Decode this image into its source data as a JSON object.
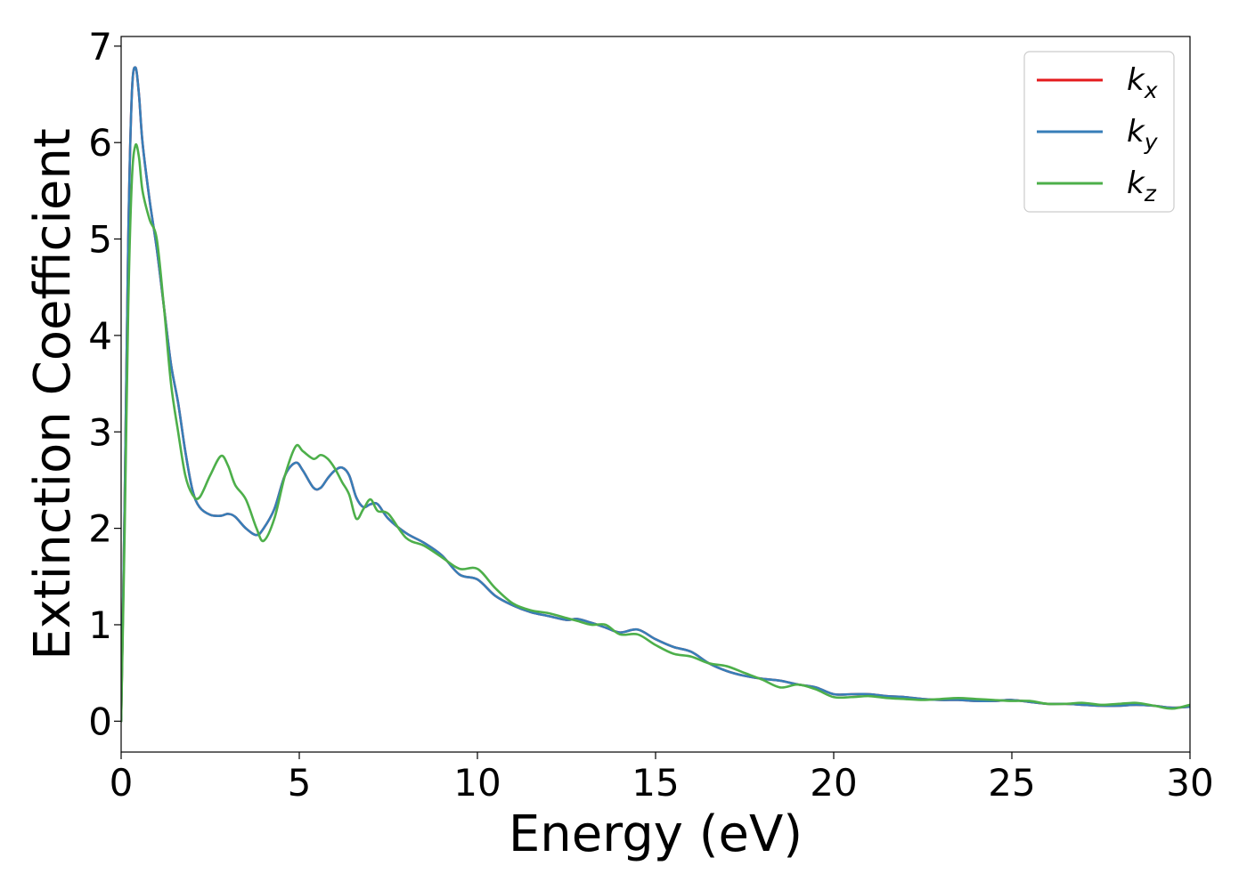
{
  "chart_data": {
    "type": "line",
    "xlabel": "Energy (eV)",
    "ylabel": "Extinction Coefficient",
    "xlim": [
      0,
      30
    ],
    "ylim": [
      -0.32,
      7.1
    ],
    "xticks": [
      0,
      5,
      10,
      15,
      20,
      25,
      30
    ],
    "yticks": [
      0,
      1,
      2,
      3,
      4,
      5,
      6,
      7
    ],
    "grid": false,
    "legend_position": "top-right",
    "series": [
      {
        "name": "k",
        "subscript": "x",
        "color": "#e41a1c",
        "x": [
          0,
          0.1,
          0.2,
          0.3,
          0.4,
          0.5,
          0.6,
          0.8,
          1.0,
          1.2,
          1.4,
          1.6,
          1.8,
          2.0,
          2.2,
          2.5,
          2.8,
          3.0,
          3.2,
          3.5,
          3.8,
          4.0,
          4.3,
          4.6,
          4.9,
          5.1,
          5.4,
          5.6,
          5.8,
          6.0,
          6.2,
          6.4,
          6.6,
          6.8,
          7.0,
          7.2,
          7.5,
          8.0,
          8.5,
          9.0,
          9.5,
          10.0,
          10.5,
          11.0,
          11.5,
          12.0,
          12.5,
          12.8,
          13.2,
          13.6,
          14.0,
          14.5,
          15.0,
          15.5,
          16.0,
          16.5,
          17.0,
          17.5,
          18.0,
          18.5,
          19.0,
          19.5,
          20.0,
          20.5,
          21.0,
          21.5,
          22.0,
          22.5,
          23.0,
          23.5,
          24.0,
          24.5,
          25.0,
          25.5,
          26.0,
          26.5,
          27.0,
          27.5,
          28.0,
          28.5,
          29.0,
          29.5,
          30.0
        ],
        "y": [
          0.0,
          2.3,
          5.0,
          6.5,
          6.78,
          6.5,
          6.0,
          5.4,
          4.9,
          4.3,
          3.7,
          3.3,
          2.8,
          2.4,
          2.22,
          2.14,
          2.13,
          2.15,
          2.12,
          2.0,
          1.93,
          2.0,
          2.2,
          2.55,
          2.68,
          2.6,
          2.42,
          2.42,
          2.52,
          2.6,
          2.63,
          2.55,
          2.32,
          2.22,
          2.25,
          2.25,
          2.1,
          1.95,
          1.85,
          1.72,
          1.52,
          1.47,
          1.3,
          1.2,
          1.13,
          1.09,
          1.05,
          1.06,
          1.02,
          0.97,
          0.92,
          0.95,
          0.85,
          0.77,
          0.72,
          0.6,
          0.52,
          0.47,
          0.44,
          0.42,
          0.38,
          0.35,
          0.28,
          0.28,
          0.28,
          0.26,
          0.25,
          0.23,
          0.22,
          0.22,
          0.21,
          0.21,
          0.22,
          0.2,
          0.18,
          0.18,
          0.17,
          0.16,
          0.16,
          0.17,
          0.16,
          0.14,
          0.15
        ]
      },
      {
        "name": "k",
        "subscript": "y",
        "color": "#377eb8",
        "x": [
          0,
          0.1,
          0.2,
          0.3,
          0.4,
          0.5,
          0.6,
          0.8,
          1.0,
          1.2,
          1.4,
          1.6,
          1.8,
          2.0,
          2.2,
          2.5,
          2.8,
          3.0,
          3.2,
          3.5,
          3.8,
          4.0,
          4.3,
          4.6,
          4.9,
          5.1,
          5.4,
          5.6,
          5.8,
          6.0,
          6.2,
          6.4,
          6.6,
          6.8,
          7.0,
          7.2,
          7.5,
          8.0,
          8.5,
          9.0,
          9.5,
          10.0,
          10.5,
          11.0,
          11.5,
          12.0,
          12.5,
          12.8,
          13.2,
          13.6,
          14.0,
          14.5,
          15.0,
          15.5,
          16.0,
          16.5,
          17.0,
          17.5,
          18.0,
          18.5,
          19.0,
          19.5,
          20.0,
          20.5,
          21.0,
          21.5,
          22.0,
          22.5,
          23.0,
          23.5,
          24.0,
          24.5,
          25.0,
          25.5,
          26.0,
          26.5,
          27.0,
          27.5,
          28.0,
          28.5,
          29.0,
          29.5,
          30.0
        ],
        "y": [
          0.0,
          2.3,
          5.0,
          6.5,
          6.78,
          6.5,
          6.0,
          5.4,
          4.9,
          4.3,
          3.7,
          3.3,
          2.8,
          2.4,
          2.22,
          2.14,
          2.13,
          2.15,
          2.12,
          2.0,
          1.93,
          2.0,
          2.2,
          2.55,
          2.68,
          2.6,
          2.42,
          2.42,
          2.52,
          2.6,
          2.63,
          2.55,
          2.32,
          2.22,
          2.25,
          2.25,
          2.1,
          1.95,
          1.85,
          1.72,
          1.52,
          1.47,
          1.3,
          1.2,
          1.13,
          1.09,
          1.05,
          1.06,
          1.02,
          0.97,
          0.92,
          0.95,
          0.85,
          0.77,
          0.72,
          0.6,
          0.52,
          0.47,
          0.44,
          0.42,
          0.38,
          0.35,
          0.28,
          0.28,
          0.28,
          0.26,
          0.25,
          0.23,
          0.22,
          0.22,
          0.21,
          0.21,
          0.22,
          0.2,
          0.18,
          0.18,
          0.17,
          0.16,
          0.16,
          0.17,
          0.16,
          0.14,
          0.15
        ]
      },
      {
        "name": "k",
        "subscript": "z",
        "color": "#4daf4a",
        "x": [
          0,
          0.1,
          0.2,
          0.3,
          0.4,
          0.5,
          0.6,
          0.8,
          1.0,
          1.2,
          1.4,
          1.6,
          1.8,
          2.0,
          2.2,
          2.5,
          2.8,
          3.0,
          3.2,
          3.5,
          3.8,
          4.0,
          4.3,
          4.6,
          4.9,
          5.1,
          5.4,
          5.6,
          5.8,
          6.0,
          6.2,
          6.4,
          6.6,
          6.8,
          7.0,
          7.2,
          7.5,
          8.0,
          8.5,
          9.0,
          9.5,
          10.0,
          10.5,
          11.0,
          11.5,
          12.0,
          12.5,
          12.8,
          13.2,
          13.6,
          14.0,
          14.5,
          15.0,
          15.5,
          16.0,
          16.5,
          17.0,
          17.5,
          18.0,
          18.5,
          19.0,
          19.5,
          20.0,
          20.5,
          21.0,
          21.5,
          22.0,
          22.5,
          23.0,
          23.5,
          24.0,
          24.5,
          25.0,
          25.5,
          26.0,
          26.5,
          27.0,
          27.5,
          28.0,
          28.5,
          29.0,
          29.5,
          30.0
        ],
        "y": [
          0.0,
          2.0,
          4.3,
          5.6,
          5.97,
          5.85,
          5.5,
          5.2,
          5.0,
          4.3,
          3.5,
          3.0,
          2.55,
          2.35,
          2.32,
          2.55,
          2.75,
          2.65,
          2.45,
          2.3,
          2.0,
          1.87,
          2.1,
          2.55,
          2.85,
          2.8,
          2.72,
          2.76,
          2.72,
          2.62,
          2.48,
          2.35,
          2.1,
          2.2,
          2.3,
          2.18,
          2.15,
          1.9,
          1.82,
          1.7,
          1.58,
          1.58,
          1.38,
          1.22,
          1.15,
          1.12,
          1.07,
          1.04,
          1.0,
          1.0,
          0.9,
          0.9,
          0.79,
          0.7,
          0.67,
          0.6,
          0.57,
          0.5,
          0.43,
          0.35,
          0.38,
          0.33,
          0.25,
          0.25,
          0.26,
          0.24,
          0.23,
          0.22,
          0.23,
          0.24,
          0.23,
          0.22,
          0.21,
          0.21,
          0.18,
          0.18,
          0.19,
          0.17,
          0.18,
          0.19,
          0.16,
          0.13,
          0.17
        ]
      }
    ]
  }
}
